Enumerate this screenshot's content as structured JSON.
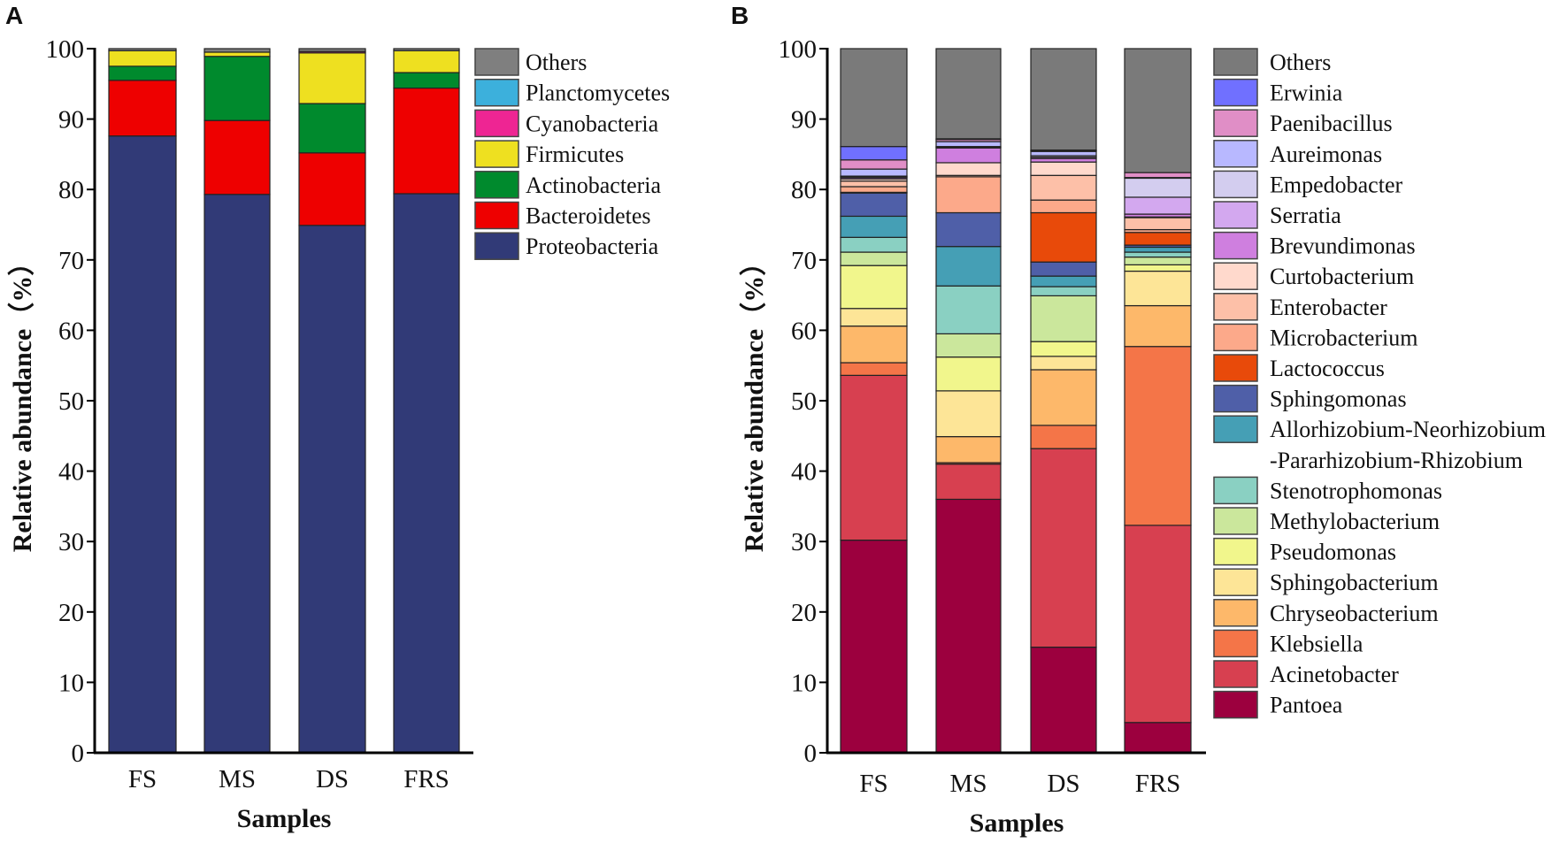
{
  "chart_data": [
    {
      "panel_label": "A",
      "type": "bar",
      "stacked": true,
      "categories": [
        "FS",
        "MS",
        "DS",
        "FRS"
      ],
      "xlabel": "Samples",
      "ylabel": "Relative abundance（%）",
      "ylim": [
        0,
        100
      ],
      "yticks": [
        "0",
        "10",
        "20",
        "30",
        "40",
        "50",
        "60",
        "70",
        "80",
        "90",
        "100"
      ],
      "legend_position": "right",
      "series": [
        {
          "name": "Proteobacteria",
          "color": "#313a77",
          "values": [
            87.6,
            79.3,
            74.9,
            79.4
          ]
        },
        {
          "name": "Bacteroidetes",
          "color": "#ee0000",
          "values": [
            7.9,
            10.5,
            10.3,
            15.0
          ]
        },
        {
          "name": "Actinobacteria",
          "color": "#008a2d",
          "values": [
            2.0,
            9.1,
            7.0,
            2.2
          ]
        },
        {
          "name": "Firmicutes",
          "color": "#eee020",
          "values": [
            2.2,
            0.6,
            7.2,
            3.1
          ]
        },
        {
          "name": "Cyanobacteria",
          "color": "#ee2593",
          "values": [
            0.0,
            0.0,
            0.2,
            0.0
          ]
        },
        {
          "name": "Planctomycetes",
          "color": "#3cb0dc",
          "values": [
            0.0,
            0.0,
            0.0,
            0.0
          ]
        },
        {
          "name": "Others",
          "color": "#7f7f7f",
          "values": [
            0.3,
            0.5,
            0.4,
            0.3
          ]
        }
      ]
    },
    {
      "panel_label": "B",
      "type": "bar",
      "stacked": true,
      "categories": [
        "FS",
        "MS",
        "DS",
        "FRS"
      ],
      "xlabel": "Samples",
      "ylabel": "Relative abundance（%）",
      "ylim": [
        0,
        100
      ],
      "yticks": [
        "0",
        "10",
        "20",
        "30",
        "40",
        "50",
        "60",
        "70",
        "80",
        "90",
        "100"
      ],
      "legend_position": "right",
      "series": [
        {
          "name": "Pantoea",
          "color": "#9c003e",
          "values": [
            30.2,
            36.0,
            15.0,
            4.3
          ]
        },
        {
          "name": "Acinetobacter",
          "color": "#d74050",
          "values": [
            23.4,
            5.0,
            28.2,
            28.0
          ]
        },
        {
          "name": "Klebsiella",
          "color": "#f47548",
          "values": [
            1.8,
            0.2,
            3.3,
            25.4
          ]
        },
        {
          "name": "Chryseobacterium",
          "color": "#fdb86a",
          "values": [
            5.2,
            3.7,
            7.9,
            5.8
          ]
        },
        {
          "name": "Sphingobacterium",
          "color": "#fde597",
          "values": [
            2.5,
            6.5,
            1.9,
            4.9
          ]
        },
        {
          "name": "Pseudomonas",
          "color": "#f1f68c",
          "values": [
            6.1,
            4.8,
            2.1,
            0.9
          ]
        },
        {
          "name": "Methylobacterium",
          "color": "#cbe79c",
          "values": [
            1.9,
            3.3,
            6.5,
            1.1
          ]
        },
        {
          "name": "Stenotrophomonas",
          "color": "#8ad0c2",
          "values": [
            2.1,
            6.8,
            1.3,
            0.7
          ]
        },
        {
          "name_lines": [
            "Allorhizobium-Neorhizobium",
            "-Pararhizobium-Rhizobium"
          ],
          "color": "#459fb5",
          "values": [
            3.0,
            5.6,
            1.5,
            0.7
          ]
        },
        {
          "name": "Sphingomonas",
          "color": "#4f5fa8",
          "values": [
            3.3,
            4.8,
            2.0,
            0.3
          ]
        },
        {
          "name": "Lactococcus",
          "color": "#e84a0a",
          "values": [
            0.1,
            0.0,
            7.0,
            1.8
          ]
        },
        {
          "name": "Microbacterium",
          "color": "#fca98a",
          "values": [
            0.8,
            5.1,
            1.8,
            0.4
          ]
        },
        {
          "name": "Enterobacter",
          "color": "#fdc0a8",
          "values": [
            0.8,
            0.2,
            3.5,
            1.7
          ]
        },
        {
          "name": "Curtobacterium",
          "color": "#ffd9cc",
          "values": [
            0.3,
            1.8,
            1.9,
            0.1
          ]
        },
        {
          "name": "Brevundimonas",
          "color": "#cf7fdf",
          "values": [
            0.2,
            2.1,
            0.5,
            0.4
          ]
        },
        {
          "name": "Serratia",
          "color": "#d3a8ef",
          "values": [
            0.1,
            0.1,
            0.2,
            2.4
          ]
        },
        {
          "name": "Empedobacter",
          "color": "#d3cdef",
          "values": [
            0.1,
            0.1,
            0.2,
            2.7
          ]
        },
        {
          "name": "Aureimonas",
          "color": "#b8b8ff",
          "values": [
            1.0,
            0.7,
            0.6,
            0.1
          ]
        },
        {
          "name": "Paenibacillus",
          "color": "#e08ec6",
          "values": [
            1.3,
            0.3,
            0.1,
            0.7
          ]
        },
        {
          "name": "Erwinia",
          "color": "#7070ff",
          "values": [
            1.9,
            0.1,
            0.1,
            0.0
          ]
        },
        {
          "name": "Others",
          "color": "#7a7a7a",
          "values": [
            13.9,
            12.8,
            14.4,
            17.6
          ]
        }
      ]
    }
  ]
}
